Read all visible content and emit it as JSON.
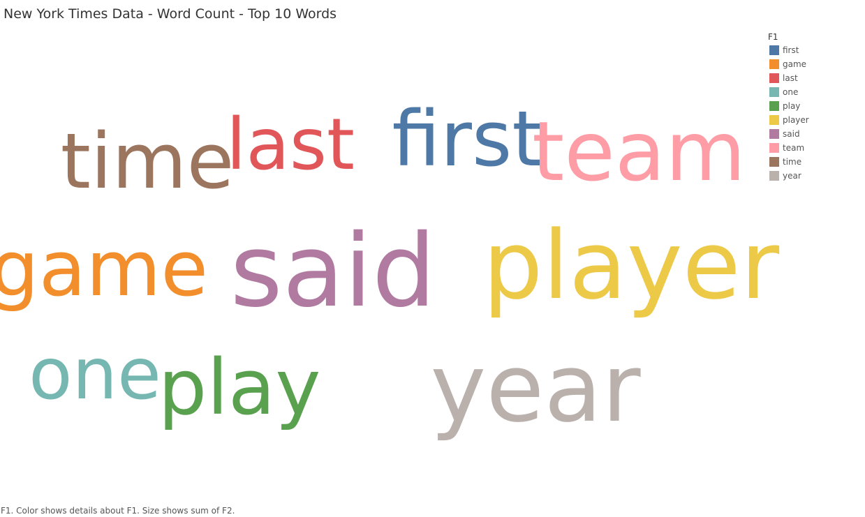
{
  "header": {
    "title": "New York Times Data - Word Count - Top 10 Words"
  },
  "chart_data": {
    "type": "word-cloud",
    "title": "New York Times Data - Word Count - Top 10 Words",
    "legend_title": "F1",
    "legend_placement": "top-right",
    "words": [
      {
        "word": "first",
        "color": "#4E79A7",
        "relative_size": 0.77
      },
      {
        "word": "game",
        "color": "#F28E2B",
        "relative_size": 0.77
      },
      {
        "word": "last",
        "color": "#E15759",
        "relative_size": 0.71
      },
      {
        "word": "one",
        "color": "#76B7B2",
        "relative_size": 0.71
      },
      {
        "word": "play",
        "color": "#59A14F",
        "relative_size": 0.77
      },
      {
        "word": "player",
        "color": "#EDC948",
        "relative_size": 0.94
      },
      {
        "word": "said",
        "color": "#B07AA1",
        "relative_size": 1.0
      },
      {
        "word": "team",
        "color": "#FF9DA7",
        "relative_size": 0.82
      },
      {
        "word": "time",
        "color": "#9C755F",
        "relative_size": 0.76
      },
      {
        "word": "year",
        "color": "#BAB0AC",
        "relative_size": 0.94
      }
    ]
  },
  "caption": "F1.  Color shows details about F1.  Size shows sum of F2."
}
